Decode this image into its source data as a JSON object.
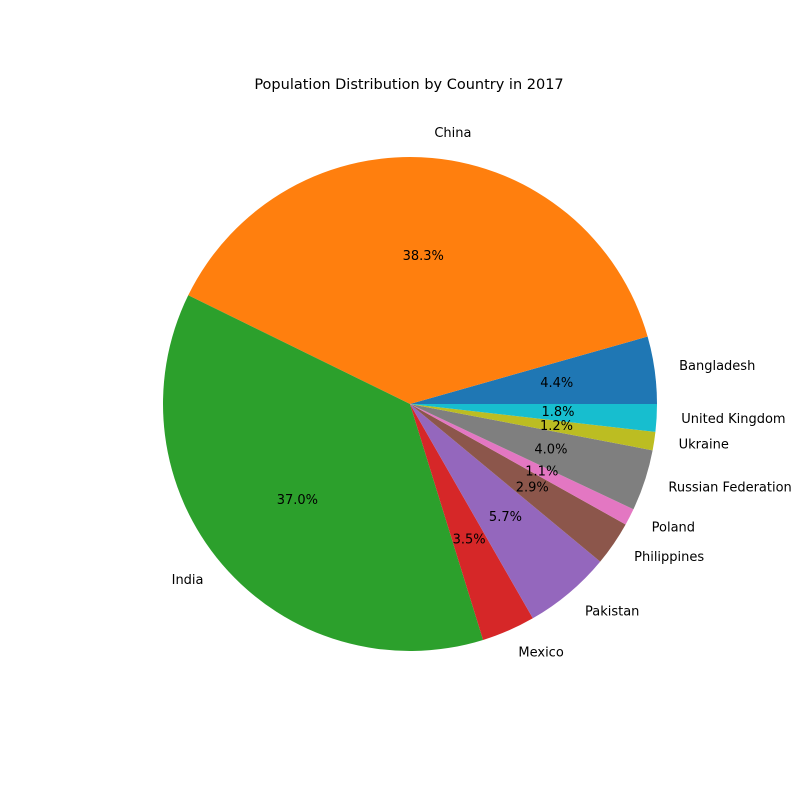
{
  "chart_data": {
    "type": "pie",
    "title": "Population Distribution by Country in 2017",
    "start_angle_deg": 0,
    "direction": "counterclockwise",
    "slices": [
      {
        "label": "Bangladesh",
        "value": 4.4,
        "pct_label": "4.4%",
        "color": "#1f77b4"
      },
      {
        "label": "China",
        "value": 38.3,
        "pct_label": "38.3%",
        "color": "#ff7f0e"
      },
      {
        "label": "India",
        "value": 37.0,
        "pct_label": "37.0%",
        "color": "#2ca02c"
      },
      {
        "label": "Mexico",
        "value": 3.5,
        "pct_label": "3.5%",
        "color": "#d62728"
      },
      {
        "label": "Pakistan",
        "value": 5.7,
        "pct_label": "5.7%",
        "color": "#9467bd"
      },
      {
        "label": "Philippines",
        "value": 2.9,
        "pct_label": "2.9%",
        "color": "#8c564b"
      },
      {
        "label": "Poland",
        "value": 1.1,
        "pct_label": "1.1%",
        "color": "#e377c2"
      },
      {
        "label": "Russian Federation",
        "value": 4.0,
        "pct_label": "4.0%",
        "color": "#7f7f7f"
      },
      {
        "label": "Ukraine",
        "value": 1.2,
        "pct_label": "1.2%",
        "color": "#bcbd22"
      },
      {
        "label": "United Kingdom",
        "value": 1.8,
        "pct_label": "1.8%",
        "color": "#17becf"
      }
    ]
  }
}
